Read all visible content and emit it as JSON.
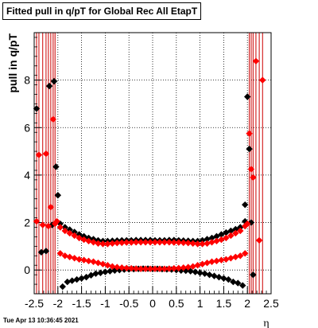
{
  "title": "Fitted pull in q/pT for Global Rec All EtapT",
  "timestamp": "Tue Apr 13 10:36:45 2021",
  "chart_data": {
    "type": "scatter",
    "title": "Fitted pull in q/pT for Global Rec All EtapT",
    "xlabel": "η",
    "ylabel": "pull in q/pT",
    "xlim": [
      -2.5,
      2.5
    ],
    "ylim": [
      -1.0,
      10.0
    ],
    "grid": true,
    "x_ticks": [
      "-2.5",
      "-2",
      "-1.5",
      "-1",
      "-0.5",
      "0",
      "0.5",
      "1",
      "1.5",
      "2",
      "2.5"
    ],
    "y_ticks": [
      "0",
      "2",
      "4",
      "6",
      "8"
    ],
    "colors": {
      "black_series": "#000000",
      "red_series": "#ff0000",
      "error_bars": "#cc0000"
    },
    "series": [
      {
        "color": "black",
        "x": [
          -2.45,
          -2.35,
          -2.25,
          -2.18,
          -2.12,
          -2.08,
          -2.04,
          -2.0,
          -1.9,
          -1.8,
          -1.7,
          -1.6,
          -1.5,
          -1.4,
          -1.3,
          -1.2,
          -1.1,
          -1.0,
          -0.9,
          -0.8,
          -0.7,
          -0.6,
          -0.5,
          -0.4,
          -0.3,
          -0.2,
          -0.1,
          0.0,
          0.1,
          0.2,
          0.3,
          0.4,
          0.5,
          0.6,
          0.7,
          0.8,
          0.9,
          1.0,
          1.1,
          1.2,
          1.3,
          1.4,
          1.5,
          1.6,
          1.7,
          1.8,
          1.9,
          1.95,
          2.0,
          2.04,
          2.08,
          2.12
        ],
        "y": [
          6.8,
          0.75,
          0.8,
          7.75,
          1.9,
          7.95,
          4.35,
          3.15,
          -0.7,
          -0.5,
          -0.45,
          -0.4,
          -0.35,
          -0.3,
          -0.22,
          -0.15,
          -0.12,
          -0.08,
          -0.05,
          -0.02,
          0.0,
          0.02,
          0.03,
          0.04,
          0.05,
          0.06,
          0.06,
          0.05,
          0.05,
          0.04,
          0.03,
          0.02,
          0.0,
          -0.02,
          -0.03,
          -0.05,
          -0.08,
          -0.12,
          -0.15,
          -0.2,
          -0.25,
          -0.3,
          -0.35,
          -0.4,
          -0.5,
          -0.55,
          -0.65,
          2.75,
          7.3,
          5.1,
          2.0,
          -0.2
        ]
      },
      {
        "color": "black",
        "x": [
          -1.95,
          -1.85,
          -1.75,
          -1.65,
          -1.55,
          -1.45,
          -1.35,
          -1.25,
          -1.15,
          -1.05,
          -0.95,
          -0.85,
          -0.75,
          -0.65,
          -0.55,
          -0.45,
          -0.35,
          -0.25,
          -0.15,
          -0.05,
          0.05,
          0.15,
          0.25,
          0.35,
          0.45,
          0.55,
          0.65,
          0.75,
          0.85,
          0.95,
          1.05,
          1.15,
          1.25,
          1.35,
          1.45,
          1.55,
          1.65,
          1.75,
          1.85,
          1.95
        ],
        "y": [
          1.95,
          1.8,
          1.7,
          1.6,
          1.5,
          1.42,
          1.35,
          1.3,
          1.25,
          1.22,
          1.22,
          1.23,
          1.24,
          1.25,
          1.25,
          1.25,
          1.26,
          1.26,
          1.26,
          1.26,
          1.25,
          1.25,
          1.25,
          1.26,
          1.26,
          1.25,
          1.24,
          1.23,
          1.22,
          1.22,
          1.25,
          1.3,
          1.35,
          1.42,
          1.5,
          1.58,
          1.65,
          1.72,
          1.8,
          2.05
        ]
      },
      {
        "color": "red",
        "x": [
          -2.45,
          -2.4,
          -2.32,
          -2.25,
          -2.2,
          -2.15,
          -2.1,
          -2.06,
          -2.02,
          -1.95,
          -1.85,
          -1.75,
          -1.65,
          -1.55,
          -1.45,
          -1.35,
          -1.25,
          -1.15,
          -1.05,
          -0.95,
          -0.85,
          -0.75,
          -0.65,
          -0.55,
          -0.45,
          -0.35,
          -0.25,
          -0.15,
          -0.05,
          0.05,
          0.15,
          0.25,
          0.35,
          0.45,
          0.55,
          0.65,
          0.75,
          0.85,
          0.95,
          1.05,
          1.15,
          1.25,
          1.35,
          1.45,
          1.55,
          1.65,
          1.75,
          1.85,
          1.95,
          2.0,
          2.04,
          2.08,
          2.12,
          2.18,
          2.25,
          2.32
        ],
        "y": [
          2.05,
          4.85,
          1.9,
          4.9,
          1.85,
          2.65,
          6.35,
          1.95,
          2.05,
          0.7,
          0.6,
          0.55,
          0.5,
          0.45,
          0.42,
          0.38,
          0.35,
          0.3,
          0.25,
          0.2,
          0.15,
          0.12,
          0.1,
          0.08,
          0.07,
          0.06,
          0.05,
          0.05,
          0.05,
          0.05,
          0.05,
          0.05,
          0.06,
          0.07,
          0.08,
          0.1,
          0.12,
          0.15,
          0.2,
          0.25,
          0.3,
          0.35,
          0.38,
          0.42,
          0.45,
          0.5,
          0.55,
          0.6,
          0.7,
          1.95,
          5.75,
          4.25,
          3.9,
          8.8,
          1.25,
          8.0
        ]
      },
      {
        "color": "red",
        "x": [
          -1.95,
          -1.85,
          -1.75,
          -1.65,
          -1.55,
          -1.45,
          -1.35,
          -1.25,
          -1.15,
          -1.05,
          -0.95,
          -0.85,
          -0.75,
          -0.65,
          -0.55,
          -0.45,
          -0.35,
          -0.25,
          -0.15,
          -0.05,
          0.05,
          0.15,
          0.25,
          0.35,
          0.45,
          0.55,
          0.65,
          0.75,
          0.85,
          0.95,
          1.05,
          1.15,
          1.25,
          1.35,
          1.45,
          1.55,
          1.65,
          1.75,
          1.85,
          1.95
        ],
        "y": [
          1.8,
          1.65,
          1.55,
          1.45,
          1.35,
          1.28,
          1.22,
          1.17,
          1.12,
          1.1,
          1.1,
          1.12,
          1.14,
          1.15,
          1.16,
          1.16,
          1.17,
          1.17,
          1.17,
          1.17,
          1.17,
          1.17,
          1.17,
          1.17,
          1.16,
          1.16,
          1.15,
          1.14,
          1.12,
          1.1,
          1.1,
          1.12,
          1.17,
          1.22,
          1.28,
          1.35,
          1.45,
          1.55,
          1.65,
          1.85
        ]
      }
    ],
    "error_bar_x": [
      -2.45,
      -2.4,
      -2.32,
      -2.25,
      -2.2,
      -2.15,
      -2.1,
      -2.06,
      2.04,
      2.08,
      2.12,
      2.18,
      2.25,
      2.32
    ]
  }
}
